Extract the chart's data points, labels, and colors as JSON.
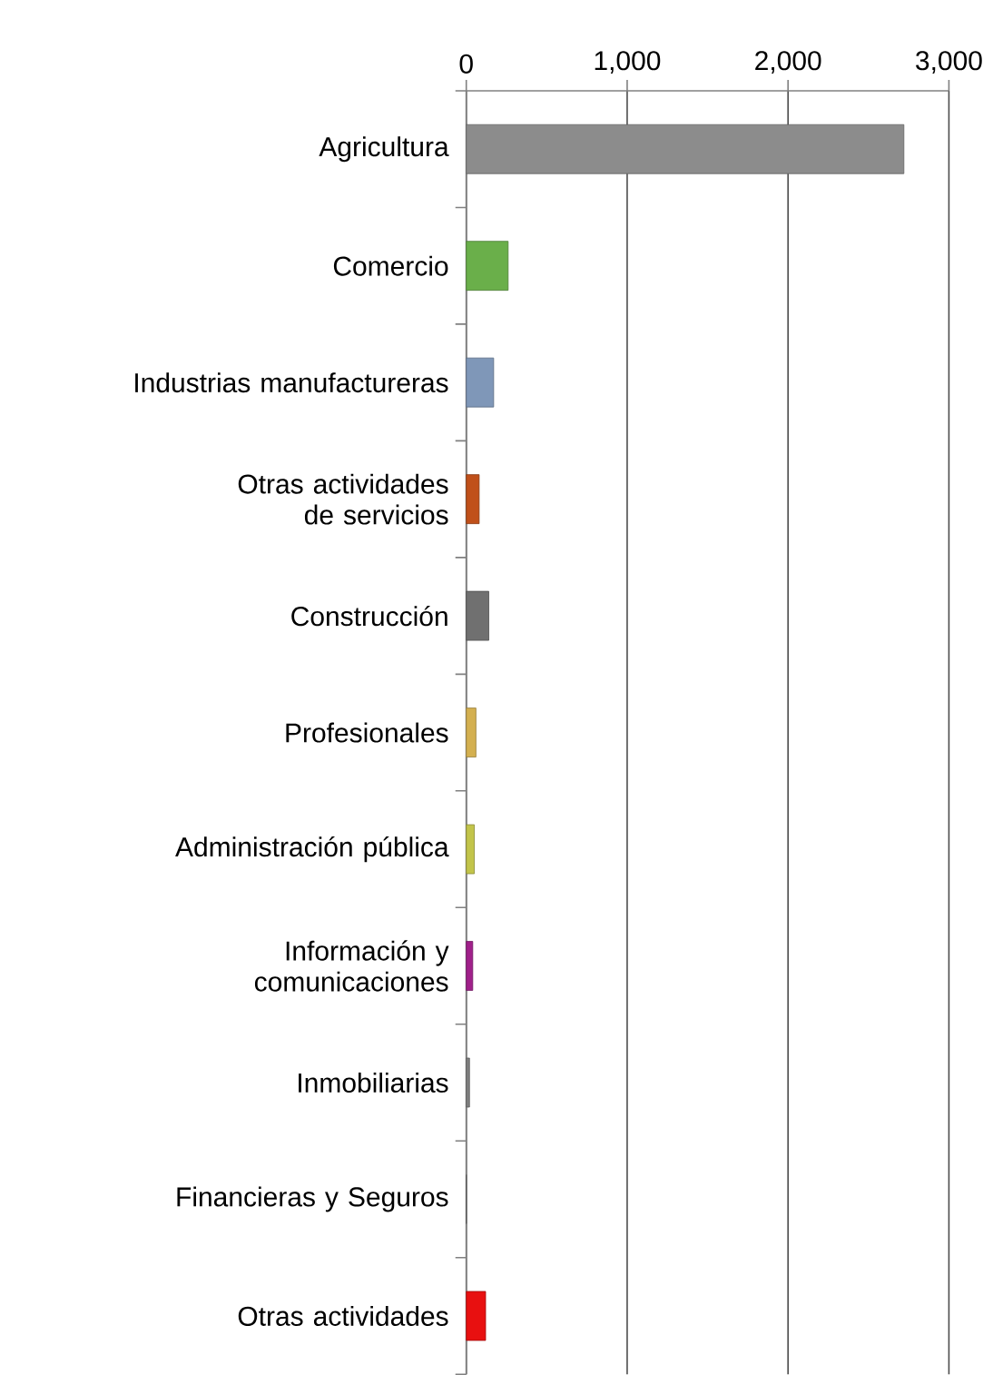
{
  "chart_data": {
    "type": "bar",
    "orientation": "horizontal",
    "categories": [
      "Agricultura",
      "Comercio",
      "Industrias manufactureras",
      "Otras actividades de servicios",
      "Construcción",
      "Profesionales",
      "Administración pública",
      "Información y comunicaciones",
      "Inmobiliarias",
      "Financieras y Seguros",
      "Otras actividades"
    ],
    "values": [
      2720,
      260,
      170,
      80,
      140,
      60,
      50,
      40,
      20,
      0,
      120
    ],
    "colors": [
      "#8c8c8c",
      "#6aaf4a",
      "#7f97b8",
      "#c0501a",
      "#707070",
      "#d4b050",
      "#c2c44a",
      "#a0208a",
      "#808080",
      "#808080",
      "#e81010"
    ],
    "xlim": [
      0,
      3000
    ],
    "xticks": [
      0,
      {
        "value": 1000,
        "label": "1,000"
      },
      {
        "value": 2000,
        "label": "2,000"
      },
      {
        "value": 3000,
        "label": "3,000"
      }
    ],
    "grid": "x"
  }
}
